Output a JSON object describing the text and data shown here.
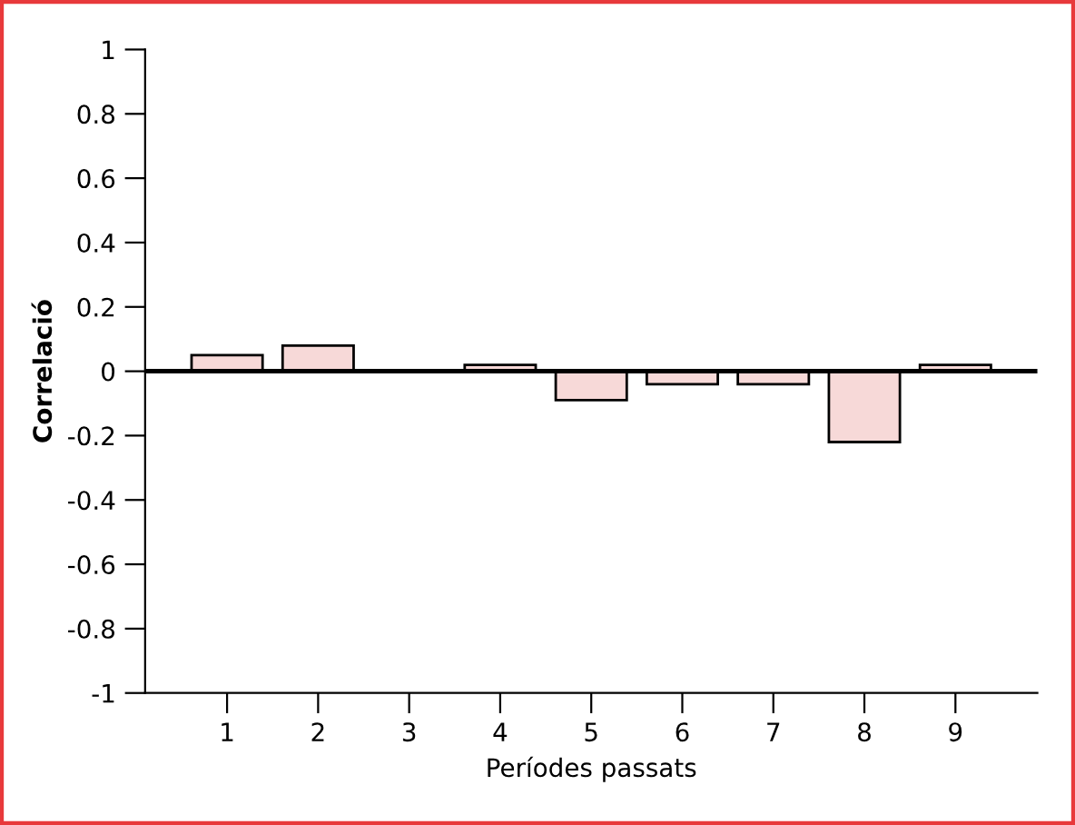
{
  "chart_data": {
    "type": "bar",
    "xlabel": "Períodes passats",
    "ylabel": "Correlació",
    "categories": [
      "1",
      "2",
      "3",
      "4",
      "5",
      "6",
      "7",
      "8",
      "9"
    ],
    "values": [
      0.05,
      0.08,
      null,
      0.02,
      -0.09,
      -0.04,
      -0.04,
      -0.22,
      0.02
    ],
    "color": "#f7d9d8",
    "ylim": [
      -1,
      1
    ],
    "yticks": [
      {
        "value": -1,
        "label": "-1"
      },
      {
        "value": -0.8,
        "label": "-0.8"
      },
      {
        "value": -0.6,
        "label": "-0.6"
      },
      {
        "value": -0.4,
        "label": "-0.4"
      },
      {
        "value": -0.2,
        "label": "-0.2"
      },
      0,
      0.2,
      0.4,
      0.6,
      0.8,
      1
    ],
    "ref_lines": [
      {
        "axis": "y",
        "value": 0,
        "color": "#000000"
      }
    ],
    "grid": false
  }
}
